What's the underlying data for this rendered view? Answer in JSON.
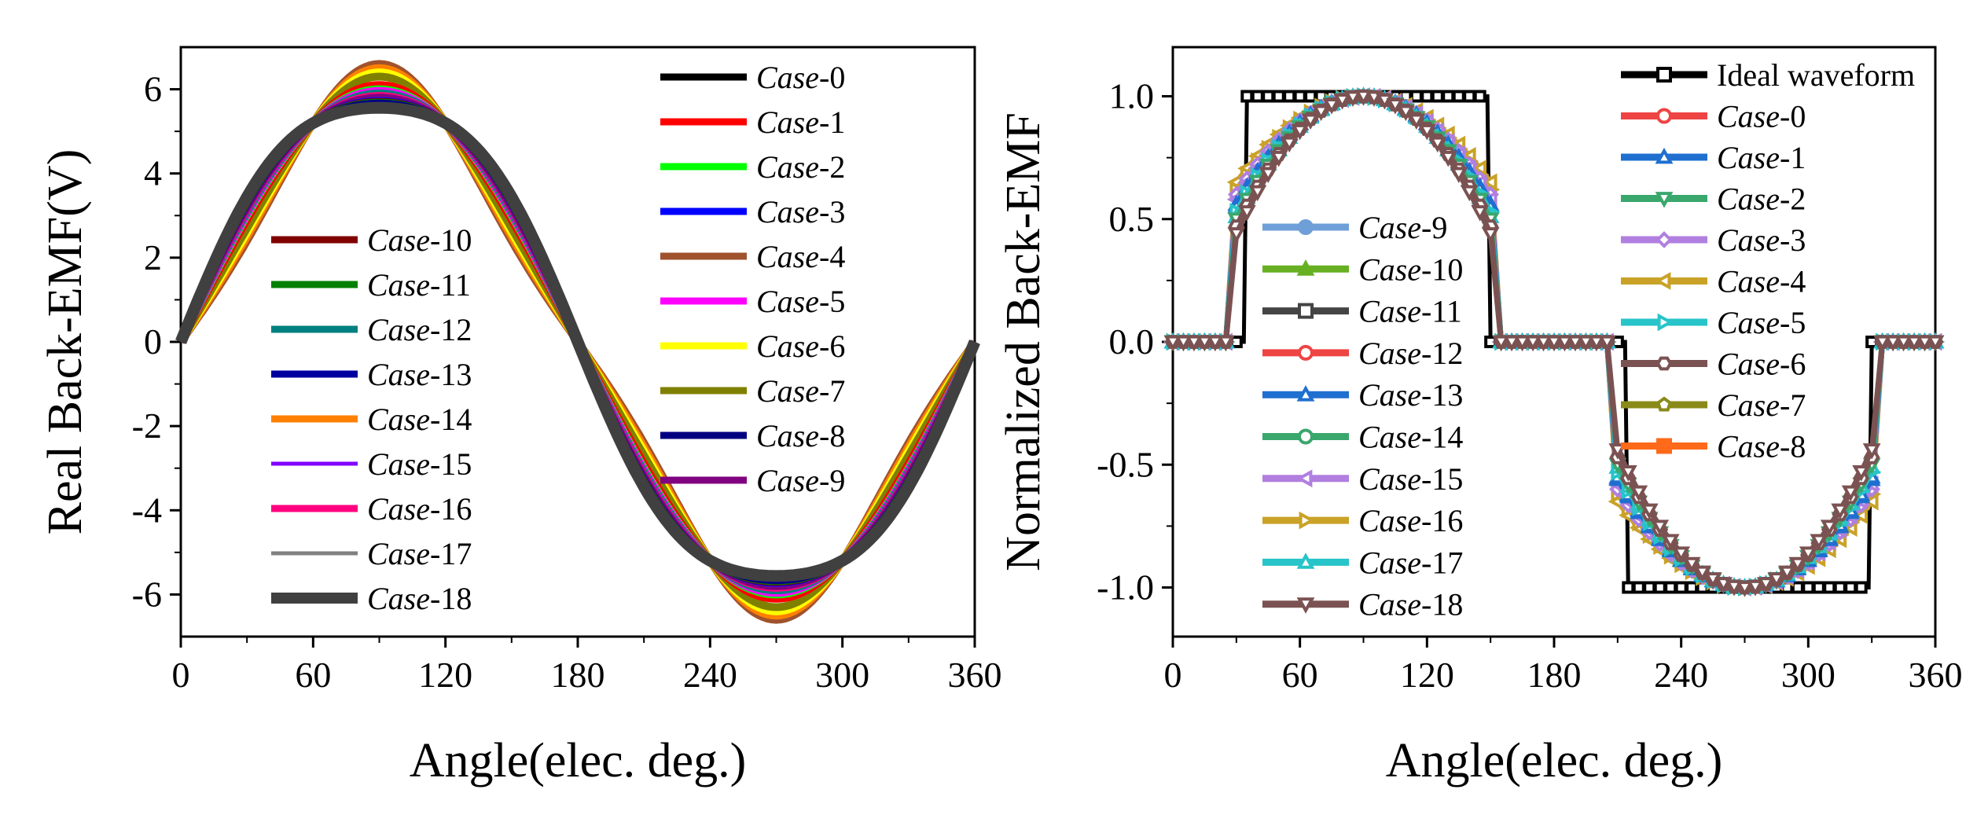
{
  "chart_data": [
    {
      "type": "line",
      "title": "",
      "xlabel": "Angle(elec. deg.)",
      "ylabel": "Real Back-EMF(V)",
      "xlim": [
        0,
        360
      ],
      "ylim": [
        -7,
        7
      ],
      "xticks": [
        "0",
        "60",
        "120",
        "180",
        "240",
        "300",
        "360"
      ],
      "yticks": [
        "-6",
        "-4",
        "-2",
        "0",
        "2",
        "4",
        "6"
      ],
      "grid": false,
      "legend_entries": [
        {
          "prefix": "Case",
          "suffix": "-0",
          "color": "#000000",
          "width": 9
        },
        {
          "prefix": "Case",
          "suffix": "-1",
          "color": "#ff0000",
          "width": 9
        },
        {
          "prefix": "Case",
          "suffix": "-2",
          "color": "#00ff00",
          "width": 9
        },
        {
          "prefix": "Case",
          "suffix": "-3",
          "color": "#0000ff",
          "width": 9
        },
        {
          "prefix": "Case",
          "suffix": "-4",
          "color": "#a0522d",
          "width": 9
        },
        {
          "prefix": "Case",
          "suffix": "-5",
          "color": "#ff00ff",
          "width": 9
        },
        {
          "prefix": "Case",
          "suffix": "-6",
          "color": "#ffff00",
          "width": 9
        },
        {
          "prefix": "Case",
          "suffix": "-7",
          "color": "#808000",
          "width": 9
        },
        {
          "prefix": "Case",
          "suffix": "-8",
          "color": "#000080",
          "width": 9
        },
        {
          "prefix": "Case",
          "suffix": "-9",
          "color": "#800080",
          "width": 9
        },
        {
          "prefix": "Case",
          "suffix": "-10",
          "color": "#800000",
          "width": 9
        },
        {
          "prefix": "Case",
          "suffix": "-11",
          "color": "#008000",
          "width": 9
        },
        {
          "prefix": "Case",
          "suffix": "-12",
          "color": "#008080",
          "width": 9
        },
        {
          "prefix": "Case",
          "suffix": "-13",
          "color": "#0000a0",
          "width": 9
        },
        {
          "prefix": "Case",
          "suffix": "-14",
          "color": "#ff8000",
          "width": 9
        },
        {
          "prefix": "Case",
          "suffix": "-15",
          "color": "#8000ff",
          "width": 5
        },
        {
          "prefix": "Case",
          "suffix": "-16",
          "color": "#ff0080",
          "width": 9
        },
        {
          "prefix": "Case",
          "suffix": "-17",
          "color": "#808080",
          "width": 5
        },
        {
          "prefix": "Case",
          "suffix": "-18",
          "color": "#404040",
          "width": 14
        }
      ],
      "series": [
        {
          "name": "Case-0",
          "amplitude": 6.0,
          "shape": 0.0
        },
        {
          "name": "Case-4",
          "amplitude": 6.0,
          "shape": 0.3
        },
        {
          "name": "Case-14",
          "amplitude": 6.0,
          "shape": 0.25
        },
        {
          "name": "Case-6",
          "amplitude": 6.0,
          "shape": 0.2
        },
        {
          "name": "Case-7",
          "amplitude": 6.0,
          "shape": 0.15
        },
        {
          "name": "Case-1",
          "amplitude": 6.0,
          "shape": 0.05
        },
        {
          "name": "Case-2",
          "amplitude": 6.0,
          "shape": 0.0
        },
        {
          "name": "Case-5",
          "amplitude": 6.0,
          "shape": -0.02
        },
        {
          "name": "Case-12",
          "amplitude": 6.0,
          "shape": -0.05
        },
        {
          "name": "Case-16",
          "amplitude": 6.0,
          "shape": -0.08
        },
        {
          "name": "Case-9",
          "amplitude": 6.0,
          "shape": -0.1
        },
        {
          "name": "Case-15",
          "amplitude": 6.0,
          "shape": -0.12
        },
        {
          "name": "Case-3",
          "amplitude": 6.0,
          "shape": -0.14
        },
        {
          "name": "Case-10",
          "amplitude": 6.0,
          "shape": -0.15
        },
        {
          "name": "Case-11",
          "amplitude": 6.0,
          "shape": -0.16
        },
        {
          "name": "Case-17",
          "amplitude": 6.0,
          "shape": -0.18
        },
        {
          "name": "Case-8",
          "amplitude": 6.0,
          "shape": -0.17
        },
        {
          "name": "Case-13",
          "amplitude": 6.0,
          "shape": -0.19
        },
        {
          "name": "Case-18",
          "amplitude": 6.0,
          "shape": -0.22
        }
      ]
    },
    {
      "type": "line",
      "title": "",
      "xlabel": "Angle(elec. deg.)",
      "ylabel": "Normalized Back-EMF",
      "xlim": [
        0,
        360
      ],
      "ylim": [
        -1.2,
        1.2
      ],
      "xticks": [
        "0",
        "60",
        "120",
        "180",
        "240",
        "300",
        "360"
      ],
      "yticks": [
        "-1.0",
        "-0.5",
        "0.0",
        "0.5",
        "1.0"
      ],
      "grid": false,
      "ideal_waveform": {
        "name": "Ideal waveform",
        "x": [
          0,
          5,
          10,
          15,
          20,
          25,
          30,
          35,
          40,
          45,
          50,
          55,
          60,
          65,
          70,
          75,
          80,
          85,
          90,
          95,
          100,
          105,
          110,
          115,
          120,
          125,
          130,
          135,
          140,
          145,
          150,
          155,
          160,
          165,
          170,
          175,
          180,
          185,
          190,
          195,
          200,
          205,
          210,
          215,
          220,
          225,
          230,
          235,
          240,
          245,
          250,
          255,
          260,
          265,
          270,
          275,
          280,
          285,
          290,
          295,
          300,
          305,
          310,
          315,
          320,
          325,
          330,
          335,
          340,
          345,
          350,
          355,
          360
        ],
        "y": [
          0,
          0,
          0,
          0,
          0,
          0,
          0,
          1,
          1,
          1,
          1,
          1,
          1,
          1,
          1,
          1,
          1,
          1,
          1,
          1,
          1,
          1,
          1,
          1,
          1,
          1,
          1,
          1,
          1,
          1,
          0,
          0,
          0,
          0,
          0,
          0,
          0,
          0,
          0,
          0,
          0,
          0,
          0,
          -1,
          -1,
          -1,
          -1,
          -1,
          -1,
          -1,
          -1,
          -1,
          -1,
          -1,
          -1,
          -1,
          -1,
          -1,
          -1,
          -1,
          -1,
          -1,
          -1,
          -1,
          -1,
          -1,
          0,
          0,
          0,
          0,
          0,
          0,
          0
        ]
      },
      "legend_entries": [
        {
          "text": "Ideal waveform",
          "prefix": "",
          "suffix": "",
          "color": "#000000",
          "marker": "square",
          "col": 0
        },
        {
          "text": "",
          "prefix": "Case",
          "suffix": "-0",
          "color": "#ee4444",
          "marker": "circle",
          "col": 0
        },
        {
          "text": "",
          "prefix": "Case",
          "suffix": "-1",
          "color": "#1f6fd0",
          "marker": "triangle-up",
          "col": 0
        },
        {
          "text": "",
          "prefix": "Case",
          "suffix": "-2",
          "color": "#3aa76d",
          "marker": "triangle-down",
          "col": 0
        },
        {
          "text": "",
          "prefix": "Case",
          "suffix": "-3",
          "color": "#b07fe0",
          "marker": "diamond",
          "col": 0
        },
        {
          "text": "",
          "prefix": "Case",
          "suffix": "-4",
          "color": "#c9a227",
          "marker": "triangle-left",
          "col": 0
        },
        {
          "text": "",
          "prefix": "Case",
          "suffix": "-5",
          "color": "#27c4c9",
          "marker": "triangle-right",
          "col": 0
        },
        {
          "text": "",
          "prefix": "Case",
          "suffix": "-6",
          "color": "#7b5252",
          "marker": "hexagon",
          "col": 0
        },
        {
          "text": "",
          "prefix": "Case",
          "suffix": "-7",
          "color": "#8a8a1a",
          "marker": "pentagon",
          "col": 0
        },
        {
          "text": "",
          "prefix": "Case",
          "suffix": "-8",
          "color": "#ff6a1a",
          "marker": "filled-square",
          "col": 0
        },
        {
          "text": "",
          "prefix": "Case",
          "suffix": "-9",
          "color": "#6f9fd8",
          "marker": "filled-circle",
          "col": 1
        },
        {
          "text": "",
          "prefix": "Case",
          "suffix": "-10",
          "color": "#66b022",
          "marker": "filled-triangle",
          "col": 1
        },
        {
          "text": "",
          "prefix": "Case",
          "suffix": "-11",
          "color": "#444444",
          "marker": "square",
          "col": 1
        },
        {
          "text": "",
          "prefix": "Case",
          "suffix": "-12",
          "color": "#ee4444",
          "marker": "circle",
          "col": 1
        },
        {
          "text": "",
          "prefix": "Case",
          "suffix": "-13",
          "color": "#1f6fd0",
          "marker": "triangle-up",
          "col": 1
        },
        {
          "text": "",
          "prefix": "Case",
          "suffix": "-14",
          "color": "#3aa76d",
          "marker": "circle",
          "col": 1
        },
        {
          "text": "",
          "prefix": "Case",
          "suffix": "-15",
          "color": "#b07fe0",
          "marker": "triangle-left",
          "col": 1
        },
        {
          "text": "",
          "prefix": "Case",
          "suffix": "-16",
          "color": "#c9a227",
          "marker": "triangle-right",
          "col": 1
        },
        {
          "text": "",
          "prefix": "Case",
          "suffix": "-17",
          "color": "#27c4c9",
          "marker": "triangle-up",
          "col": 1
        },
        {
          "text": "",
          "prefix": "Case",
          "suffix": "-18",
          "color": "#7b5252",
          "marker": "triangle-down",
          "col": 1
        }
      ],
      "series": [
        {
          "name": "Case-4",
          "start": 0.65,
          "color": "#c9a227",
          "marker": "triangle-left"
        },
        {
          "name": "Case-16",
          "start": 0.62,
          "color": "#c9a227",
          "marker": "triangle-right"
        },
        {
          "name": "Case-3",
          "start": 0.6,
          "color": "#b07fe0",
          "marker": "diamond"
        },
        {
          "name": "Case-15",
          "start": 0.58,
          "color": "#b07fe0",
          "marker": "triangle-left"
        },
        {
          "name": "Case-1",
          "start": 0.56,
          "color": "#1f6fd0",
          "marker": "triangle-up"
        },
        {
          "name": "Case-13",
          "start": 0.55,
          "color": "#1f6fd0",
          "marker": "triangle-up"
        },
        {
          "name": "Case-5",
          "start": 0.53,
          "color": "#27c4c9",
          "marker": "triangle-right"
        },
        {
          "name": "Case-17",
          "start": 0.51,
          "color": "#27c4c9",
          "marker": "triangle-up"
        },
        {
          "name": "Case-2",
          "start": 0.5,
          "color": "#3aa76d",
          "marker": "triangle-down"
        },
        {
          "name": "Case-6",
          "start": 0.47,
          "color": "#7b5252",
          "marker": "hexagon"
        },
        {
          "name": "Case-18",
          "start": 0.44,
          "color": "#7b5252",
          "marker": "triangle-down"
        }
      ]
    }
  ]
}
